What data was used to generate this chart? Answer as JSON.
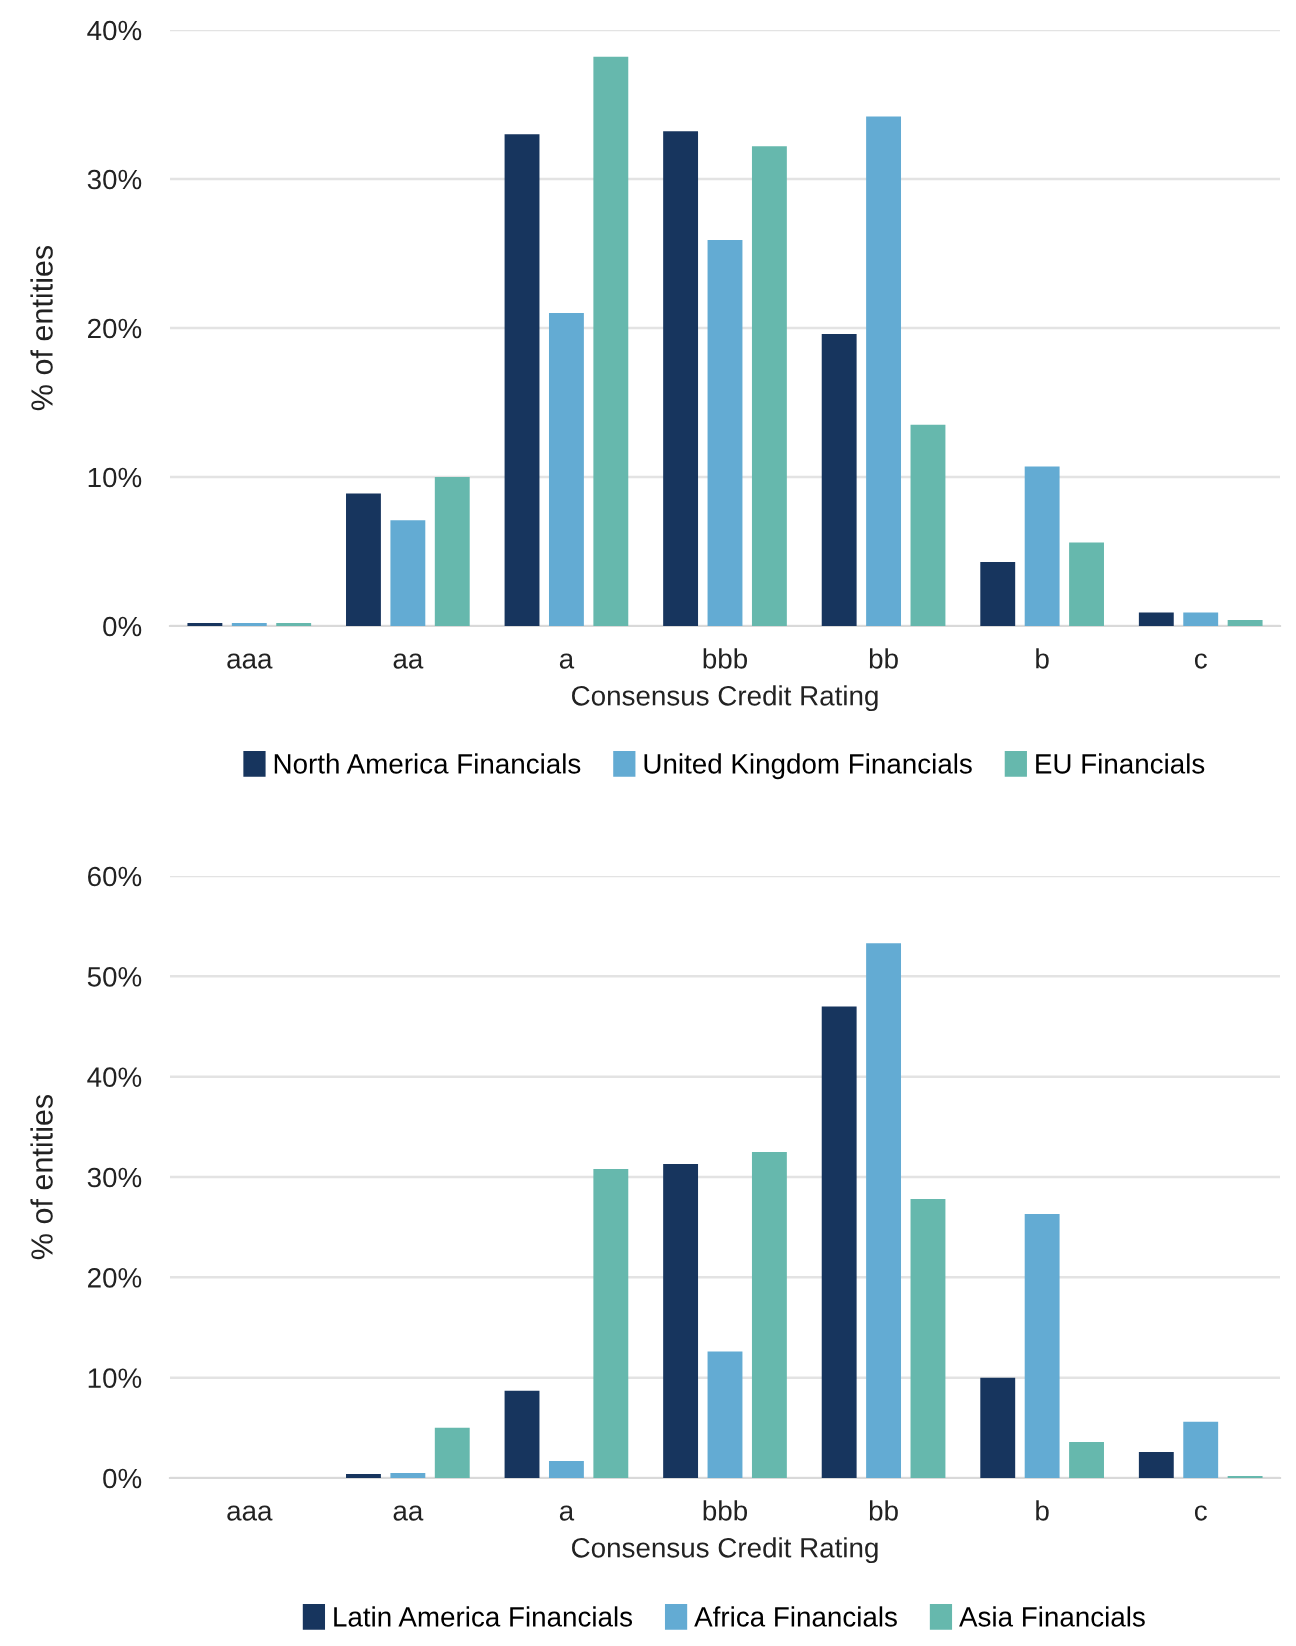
{
  "chart_data": [
    {
      "type": "bar",
      "xlabel": "Consensus Credit Rating",
      "ylabel": "% of entities",
      "categories": [
        "aaa",
        "aa",
        "a",
        "bbb",
        "bb",
        "b",
        "c"
      ],
      "series": [
        {
          "name": "North America Financials",
          "color": "#17355e",
          "values": [
            0.2,
            8.9,
            33.0,
            33.2,
            19.6,
            4.3,
            0.9
          ]
        },
        {
          "name": "United Kingdom Financials",
          "color": "#63abd3",
          "values": [
            0.2,
            7.1,
            21.0,
            25.9,
            34.2,
            10.7,
            0.9
          ]
        },
        {
          "name": "EU Financials",
          "color": "#66b8ad",
          "values": [
            0.2,
            10.0,
            38.2,
            32.2,
            13.5,
            5.6,
            0.4
          ]
        }
      ],
      "ylim": [
        0,
        40
      ],
      "yticks": [
        {
          "value": 0,
          "label": "0%"
        },
        {
          "value": 10,
          "label": "10%"
        },
        {
          "value": 20,
          "label": "20%"
        },
        {
          "value": 30,
          "label": "30%"
        },
        {
          "value": 40,
          "label": "40%"
        }
      ],
      "grid": "y",
      "legend": "bottom"
    },
    {
      "type": "bar",
      "xlabel": "Consensus Credit Rating",
      "ylabel": "% of entities",
      "categories": [
        "aaa",
        "aa",
        "a",
        "bbb",
        "bb",
        "b",
        "c"
      ],
      "series": [
        {
          "name": "Latin America Financials",
          "color": "#17355e",
          "values": [
            0,
            0.4,
            8.7,
            31.3,
            47.0,
            10.0,
            2.6
          ]
        },
        {
          "name": "Africa Financials",
          "color": "#63abd3",
          "values": [
            0,
            0.5,
            1.7,
            12.6,
            53.3,
            26.3,
            5.6
          ]
        },
        {
          "name": "Asia Financials",
          "color": "#66b8ad",
          "values": [
            0,
            5.0,
            30.8,
            32.5,
            27.8,
            3.6,
            0.2
          ]
        }
      ],
      "ylim": [
        0,
        60
      ],
      "yticks": [
        {
          "value": 0,
          "label": "0%"
        },
        {
          "value": 10,
          "label": "10%"
        },
        {
          "value": 20,
          "label": "20%"
        },
        {
          "value": 30,
          "label": "30%"
        },
        {
          "value": 40,
          "label": "40%"
        },
        {
          "value": 50,
          "label": "50%"
        },
        {
          "value": 60,
          "label": "60%"
        }
      ],
      "grid": "y",
      "legend": "bottom"
    }
  ]
}
